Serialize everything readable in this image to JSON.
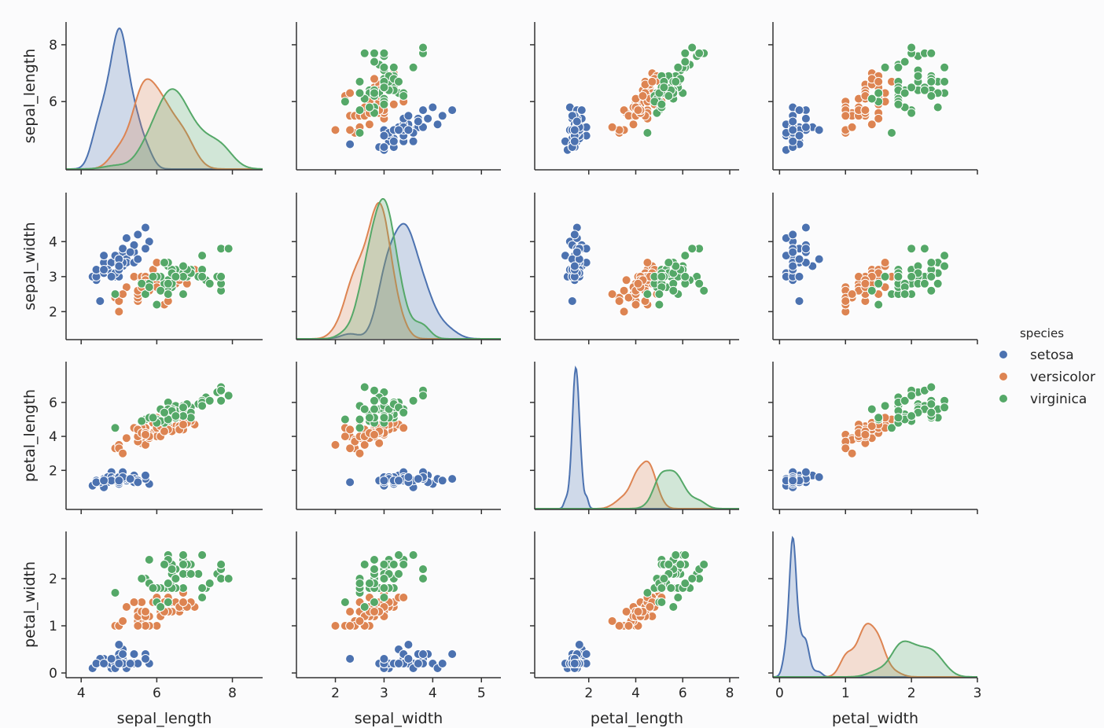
{
  "chart_data": {
    "type": "scatter",
    "title": "",
    "grid": false,
    "variables": [
      "sepal_length",
      "sepal_width",
      "petal_length",
      "petal_width"
    ],
    "diag_kind": "kde",
    "axis_ranges": {
      "sepal_length": [
        3.6,
        8.8
      ],
      "sepal_width": [
        1.2,
        5.4
      ],
      "petal_length": [
        -0.3,
        8.4
      ],
      "petal_width": [
        -0.1,
        3.0
      ]
    },
    "ticks": {
      "sepal_length": [
        4,
        6,
        8
      ],
      "sepal_width": [
        2,
        3,
        4,
        5
      ],
      "petal_length": [
        2,
        4,
        6,
        8
      ],
      "petal_width": [
        0,
        1,
        2,
        3
      ]
    },
    "ytick_rows": {
      "sepal_length": [
        6,
        8
      ],
      "sepal_width": [
        2,
        3,
        4
      ],
      "petal_length": [
        2,
        4,
        6
      ],
      "petal_width": [
        0,
        1,
        2
      ]
    },
    "legend": {
      "title": "species",
      "position": "right-center",
      "entries": [
        "setosa",
        "versicolor",
        "virginica"
      ]
    },
    "series": [
      {
        "name": "setosa",
        "color": "#4c72b0",
        "points": [
          [
            5.1,
            3.5,
            1.4,
            0.2
          ],
          [
            4.9,
            3.0,
            1.4,
            0.2
          ],
          [
            4.7,
            3.2,
            1.3,
            0.2
          ],
          [
            4.6,
            3.1,
            1.5,
            0.2
          ],
          [
            5.0,
            3.6,
            1.4,
            0.2
          ],
          [
            5.4,
            3.9,
            1.7,
            0.4
          ],
          [
            4.6,
            3.4,
            1.4,
            0.3
          ],
          [
            5.0,
            3.4,
            1.5,
            0.2
          ],
          [
            4.4,
            2.9,
            1.4,
            0.2
          ],
          [
            4.9,
            3.1,
            1.5,
            0.1
          ],
          [
            5.4,
            3.7,
            1.5,
            0.2
          ],
          [
            4.8,
            3.4,
            1.6,
            0.2
          ],
          [
            4.8,
            3.0,
            1.4,
            0.1
          ],
          [
            4.3,
            3.0,
            1.1,
            0.1
          ],
          [
            5.8,
            4.0,
            1.2,
            0.2
          ],
          [
            5.7,
            4.4,
            1.5,
            0.4
          ],
          [
            5.4,
            3.9,
            1.3,
            0.4
          ],
          [
            5.1,
            3.5,
            1.4,
            0.3
          ],
          [
            5.7,
            3.8,
            1.7,
            0.3
          ],
          [
            5.1,
            3.8,
            1.5,
            0.3
          ],
          [
            5.4,
            3.4,
            1.7,
            0.2
          ],
          [
            5.1,
            3.7,
            1.5,
            0.4
          ],
          [
            4.6,
            3.6,
            1.0,
            0.2
          ],
          [
            5.1,
            3.3,
            1.7,
            0.5
          ],
          [
            4.8,
            3.4,
            1.9,
            0.2
          ],
          [
            5.0,
            3.0,
            1.6,
            0.2
          ],
          [
            5.0,
            3.4,
            1.6,
            0.4
          ],
          [
            5.2,
            3.5,
            1.5,
            0.2
          ],
          [
            5.2,
            3.4,
            1.4,
            0.2
          ],
          [
            4.7,
            3.2,
            1.6,
            0.2
          ],
          [
            4.8,
            3.1,
            1.6,
            0.2
          ],
          [
            5.4,
            3.4,
            1.5,
            0.4
          ],
          [
            5.2,
            4.1,
            1.5,
            0.1
          ],
          [
            5.5,
            4.2,
            1.4,
            0.2
          ],
          [
            4.9,
            3.1,
            1.5,
            0.2
          ],
          [
            5.0,
            3.2,
            1.2,
            0.2
          ],
          [
            5.5,
            3.5,
            1.3,
            0.2
          ],
          [
            4.9,
            3.6,
            1.4,
            0.1
          ],
          [
            4.4,
            3.0,
            1.3,
            0.2
          ],
          [
            5.1,
            3.4,
            1.5,
            0.2
          ],
          [
            5.0,
            3.5,
            1.3,
            0.3
          ],
          [
            4.5,
            2.3,
            1.3,
            0.3
          ],
          [
            4.4,
            3.2,
            1.3,
            0.2
          ],
          [
            5.0,
            3.5,
            1.6,
            0.6
          ],
          [
            5.1,
            3.8,
            1.9,
            0.4
          ],
          [
            4.8,
            3.0,
            1.4,
            0.3
          ],
          [
            5.1,
            3.8,
            1.6,
            0.2
          ],
          [
            4.6,
            3.2,
            1.4,
            0.2
          ],
          [
            5.3,
            3.7,
            1.5,
            0.2
          ],
          [
            5.0,
            3.3,
            1.4,
            0.2
          ]
        ]
      },
      {
        "name": "versicolor",
        "color": "#dd8452",
        "points": [
          [
            7.0,
            3.2,
            4.7,
            1.4
          ],
          [
            6.4,
            3.2,
            4.5,
            1.5
          ],
          [
            6.9,
            3.1,
            4.9,
            1.5
          ],
          [
            5.5,
            2.3,
            4.0,
            1.3
          ],
          [
            6.5,
            2.8,
            4.6,
            1.5
          ],
          [
            5.7,
            2.8,
            4.5,
            1.3
          ],
          [
            6.3,
            3.3,
            4.7,
            1.6
          ],
          [
            4.9,
            2.4,
            3.3,
            1.0
          ],
          [
            6.6,
            2.9,
            4.6,
            1.3
          ],
          [
            5.2,
            2.7,
            3.9,
            1.4
          ],
          [
            5.0,
            2.0,
            3.5,
            1.0
          ],
          [
            5.9,
            3.0,
            4.2,
            1.5
          ],
          [
            6.0,
            2.2,
            4.0,
            1.0
          ],
          [
            6.1,
            2.9,
            4.7,
            1.4
          ],
          [
            5.6,
            2.9,
            3.6,
            1.3
          ],
          [
            6.7,
            3.1,
            4.4,
            1.4
          ],
          [
            5.6,
            3.0,
            4.5,
            1.5
          ],
          [
            5.8,
            2.7,
            4.1,
            1.0
          ],
          [
            6.2,
            2.2,
            4.5,
            1.5
          ],
          [
            5.6,
            2.5,
            3.9,
            1.1
          ],
          [
            5.9,
            3.2,
            4.8,
            1.8
          ],
          [
            6.1,
            2.8,
            4.0,
            1.3
          ],
          [
            6.3,
            2.5,
            4.9,
            1.5
          ],
          [
            6.1,
            2.8,
            4.7,
            1.2
          ],
          [
            6.4,
            2.9,
            4.3,
            1.3
          ],
          [
            6.6,
            3.0,
            4.4,
            1.4
          ],
          [
            6.8,
            2.8,
            4.8,
            1.4
          ],
          [
            6.7,
            3.0,
            5.0,
            1.7
          ],
          [
            6.0,
            2.9,
            4.5,
            1.5
          ],
          [
            5.7,
            2.6,
            3.5,
            1.0
          ],
          [
            5.5,
            2.4,
            3.8,
            1.1
          ],
          [
            5.5,
            2.4,
            3.7,
            1.0
          ],
          [
            5.8,
            2.7,
            3.9,
            1.2
          ],
          [
            6.0,
            2.7,
            5.1,
            1.6
          ],
          [
            5.4,
            3.0,
            4.5,
            1.5
          ],
          [
            6.0,
            3.4,
            4.5,
            1.6
          ],
          [
            6.7,
            3.1,
            4.7,
            1.5
          ],
          [
            6.3,
            2.3,
            4.4,
            1.3
          ],
          [
            5.6,
            3.0,
            4.1,
            1.3
          ],
          [
            5.5,
            2.5,
            4.0,
            1.3
          ],
          [
            5.5,
            2.6,
            4.4,
            1.2
          ],
          [
            6.1,
            3.0,
            4.6,
            1.4
          ],
          [
            5.8,
            2.6,
            4.0,
            1.2
          ],
          [
            5.0,
            2.3,
            3.3,
            1.0
          ],
          [
            5.6,
            2.7,
            4.2,
            1.3
          ],
          [
            5.7,
            3.0,
            4.2,
            1.2
          ],
          [
            5.7,
            2.9,
            4.2,
            1.3
          ],
          [
            6.2,
            2.9,
            4.3,
            1.3
          ],
          [
            5.1,
            2.5,
            3.0,
            1.1
          ],
          [
            5.7,
            2.8,
            4.1,
            1.3
          ]
        ]
      },
      {
        "name": "virginica",
        "color": "#55a868",
        "points": [
          [
            6.3,
            3.3,
            6.0,
            2.5
          ],
          [
            5.8,
            2.7,
            5.1,
            1.9
          ],
          [
            7.1,
            3.0,
            5.9,
            2.1
          ],
          [
            6.3,
            2.9,
            5.6,
            1.8
          ],
          [
            6.5,
            3.0,
            5.8,
            2.2
          ],
          [
            7.6,
            3.0,
            6.6,
            2.1
          ],
          [
            4.9,
            2.5,
            4.5,
            1.7
          ],
          [
            7.3,
            2.9,
            6.3,
            1.8
          ],
          [
            6.7,
            2.5,
            5.8,
            1.8
          ],
          [
            7.2,
            3.6,
            6.1,
            2.5
          ],
          [
            6.5,
            3.2,
            5.1,
            2.0
          ],
          [
            6.4,
            2.7,
            5.3,
            1.9
          ],
          [
            6.8,
            3.0,
            5.5,
            2.1
          ],
          [
            5.7,
            2.5,
            5.0,
            2.0
          ],
          [
            5.8,
            2.8,
            5.1,
            2.4
          ],
          [
            6.4,
            3.2,
            5.3,
            2.3
          ],
          [
            6.5,
            3.0,
            5.5,
            1.8
          ],
          [
            7.7,
            3.8,
            6.7,
            2.2
          ],
          [
            7.7,
            2.6,
            6.9,
            2.3
          ],
          [
            6.0,
            2.2,
            5.0,
            1.5
          ],
          [
            6.9,
            3.2,
            5.7,
            2.3
          ],
          [
            5.6,
            2.8,
            4.9,
            2.0
          ],
          [
            7.7,
            2.8,
            6.7,
            2.0
          ],
          [
            6.3,
            2.7,
            4.9,
            1.8
          ],
          [
            6.7,
            3.3,
            5.7,
            2.1
          ],
          [
            7.2,
            3.2,
            6.0,
            1.8
          ],
          [
            6.2,
            2.8,
            4.8,
            1.8
          ],
          [
            6.1,
            3.0,
            4.9,
            1.8
          ],
          [
            6.4,
            2.8,
            5.6,
            2.1
          ],
          [
            7.2,
            3.0,
            5.8,
            1.6
          ],
          [
            7.4,
            2.8,
            6.1,
            1.9
          ],
          [
            7.9,
            3.8,
            6.4,
            2.0
          ],
          [
            6.4,
            2.8,
            5.6,
            2.2
          ],
          [
            6.3,
            2.8,
            5.1,
            1.5
          ],
          [
            6.1,
            2.6,
            5.6,
            1.4
          ],
          [
            7.7,
            3.0,
            6.1,
            2.3
          ],
          [
            6.3,
            3.4,
            5.6,
            2.4
          ],
          [
            6.4,
            3.1,
            5.5,
            1.8
          ],
          [
            6.0,
            3.0,
            4.8,
            1.8
          ],
          [
            6.9,
            3.1,
            5.4,
            2.1
          ],
          [
            6.7,
            3.1,
            5.6,
            2.4
          ],
          [
            6.9,
            3.1,
            5.1,
            2.3
          ],
          [
            5.8,
            2.7,
            5.1,
            1.9
          ],
          [
            6.8,
            3.2,
            5.9,
            2.3
          ],
          [
            6.7,
            3.3,
            5.7,
            2.5
          ],
          [
            6.7,
            3.0,
            5.2,
            2.3
          ],
          [
            6.3,
            2.5,
            5.0,
            1.9
          ],
          [
            6.5,
            3.0,
            5.2,
            2.0
          ],
          [
            6.2,
            3.4,
            5.4,
            2.3
          ],
          [
            5.9,
            3.0,
            5.1,
            1.8
          ]
        ]
      }
    ]
  }
}
